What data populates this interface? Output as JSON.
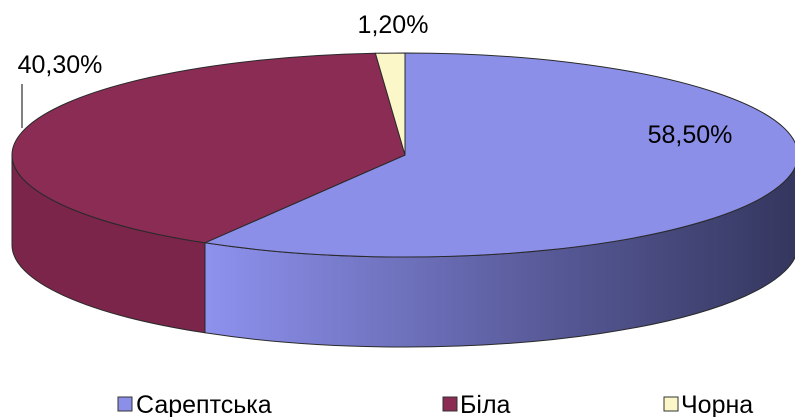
{
  "chart_data": {
    "type": "pie",
    "three_d": true,
    "series": [
      {
        "name": "Сарептська",
        "value": 58.5,
        "label": "58,50%",
        "color": "#8b8fe8"
      },
      {
        "name": "Біла",
        "value": 40.3,
        "label": "40,30%",
        "color": "#8b2c55"
      },
      {
        "name": "Чорна",
        "value": 1.2,
        "label": "1,20%",
        "color": "#fbf7c8"
      }
    ],
    "legend_position": "bottom"
  }
}
